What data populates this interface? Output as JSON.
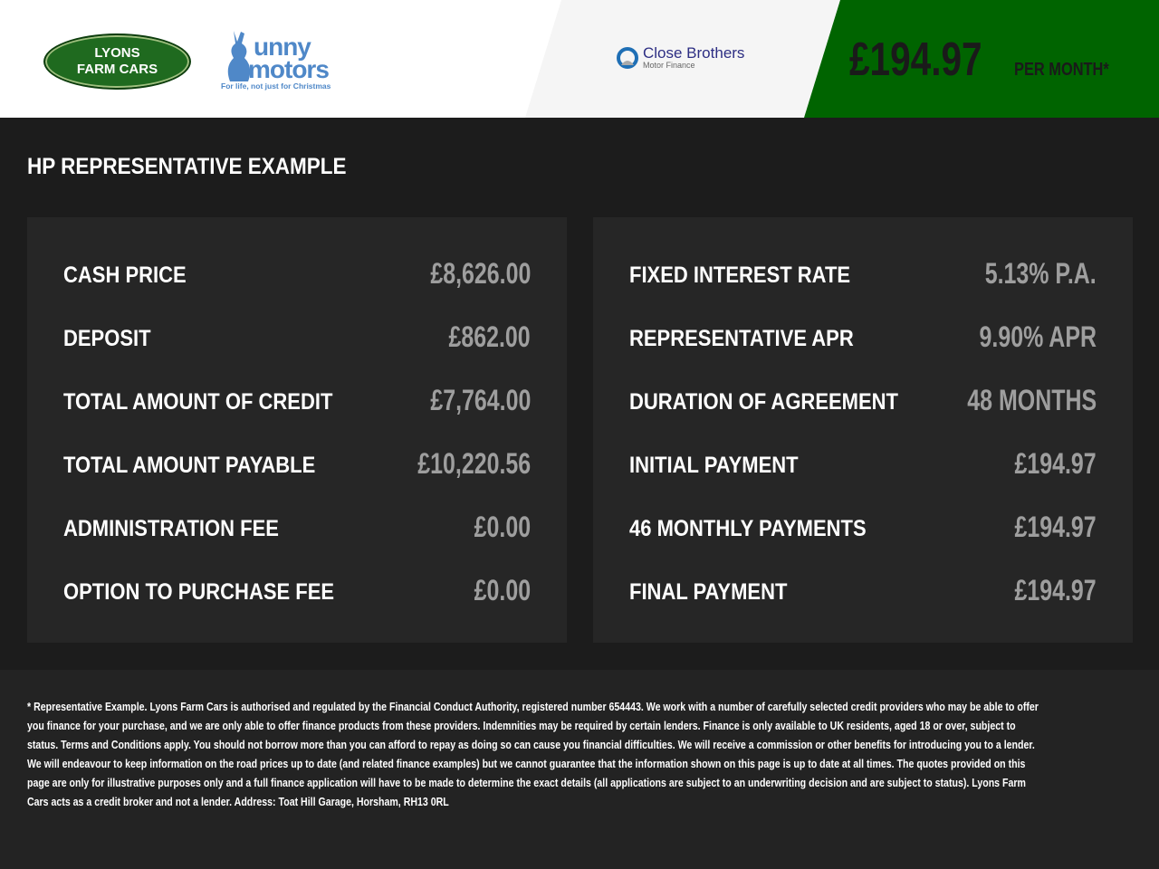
{
  "header": {
    "logos": {
      "lyons": "LYONS FARM CARS",
      "lyons_line1": "LYONS",
      "lyons_line2": "FARM CARS",
      "bunny_word1": "unny",
      "bunny_word2": "motors",
      "bunny_tagline": "For life, not just for Christmas",
      "lender_name": "Close Brothers",
      "lender_sub": "Motor Finance"
    },
    "monthly_price": "£194.97",
    "per_month": "PER MONTH*",
    "colors": {
      "green": "#006400",
      "lender_blue": "#2d2e83",
      "bunny_blue": "#4f88c8"
    }
  },
  "section_title": "HP REPRESENTATIVE EXAMPLE",
  "left_panel": [
    {
      "label": "CASH PRICE",
      "value": "£8,626.00"
    },
    {
      "label": "DEPOSIT",
      "value": "£862.00"
    },
    {
      "label": "TOTAL AMOUNT OF CREDIT",
      "value": "£7,764.00"
    },
    {
      "label": "TOTAL AMOUNT PAYABLE",
      "value": "£10,220.56"
    },
    {
      "label": "ADMINISTRATION FEE",
      "value": "£0.00"
    },
    {
      "label": "OPTION TO PURCHASE FEE",
      "value": "£0.00"
    }
  ],
  "right_panel": [
    {
      "label": "FIXED INTEREST RATE",
      "value": "5.13% P.A."
    },
    {
      "label": "REPRESENTATIVE APR",
      "value": "9.90% APR"
    },
    {
      "label": "DURATION OF AGREEMENT",
      "value": "48 MONTHS"
    },
    {
      "label": "INITIAL PAYMENT",
      "value": "£194.97"
    },
    {
      "label": "46 MONTHLY PAYMENTS",
      "value": "£194.97"
    },
    {
      "label": "FINAL PAYMENT",
      "value": "£194.97"
    }
  ],
  "disclaimer": "* Representative Example. Lyons Farm Cars is authorised and regulated by the Financial Conduct Authority, registered number 654443. We work with a number of carefully selected credit providers who may be able to offer you finance for your purchase, and we are only able to offer finance products from these providers. Indemnities may be required by certain lenders. Finance is only available to UK residents, aged 18 or over, subject to status. Terms and Conditions apply. You should not borrow more than you can afford to repay as doing so can cause you financial difficulties. We will receive a commission or other benefits for introducing you to a lender. We will endeavour to keep information on the road prices up to date (and related finance examples) but we cannot guarantee that the information shown on this page is up to date at all times. The quotes provided on this page are only for illustrative purposes only and a full finance application will have to be made to determine the exact details (all applications are subject to an underwriting decision and are subject to status). Lyons Farm Cars acts as a credit broker and not a lender. Address: Toat Hill Garage, Horsham, RH13 0RL"
}
